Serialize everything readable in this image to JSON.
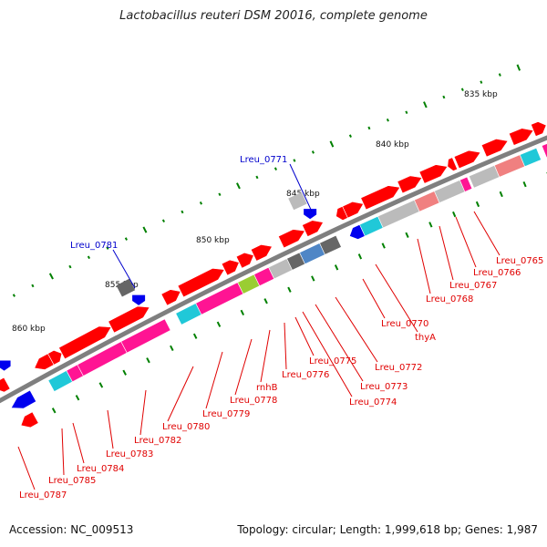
{
  "title": "Lactobacillus reuteri DSM 20016, complete genome",
  "footer": {
    "accession": "Accession: NC_009513",
    "summary": "Topology: circular; Length: 1,999,618 bp; Genes: 1,987"
  },
  "scale_labels": [
    "835 kbp",
    "840 kbp",
    "845 kbp",
    "850 kbp",
    "855 kbp",
    "860 kbp"
  ],
  "colors": {
    "backbone": "#7f7f7f",
    "gene_red": "#ff0000",
    "gene_magenta": "#ff1493",
    "gene_cyan": "#20c8d8",
    "gene_blue": "#0000ee",
    "gene_grey": "#bbbbbb",
    "gene_darkgrey": "#666666",
    "gene_salmon": "#f08080",
    "gene_lime": "#9acd32",
    "gene_steel": "#4f86c6",
    "ticks": "#008000",
    "label_red": "#e00000",
    "label_blue": "#0000cc"
  },
  "gene_labels_inner": [
    "Lreu_0765",
    "Lreu_0766",
    "Lreu_0767",
    "Lreu_0768",
    "thyA",
    "Lreu_0770",
    "Lreu_0772",
    "Lreu_0773",
    "Lreu_0774",
    "Lreu_0775",
    "Lreu_0776",
    "rnhB",
    "Lreu_0778",
    "Lreu_0779",
    "Lreu_0780",
    "Lreu_0782",
    "Lreu_0783",
    "Lreu_0784",
    "Lreu_0785",
    "Lreu_0787"
  ],
  "gene_labels_outer": [
    "Lreu_0771",
    "Lreu_0781"
  ]
}
